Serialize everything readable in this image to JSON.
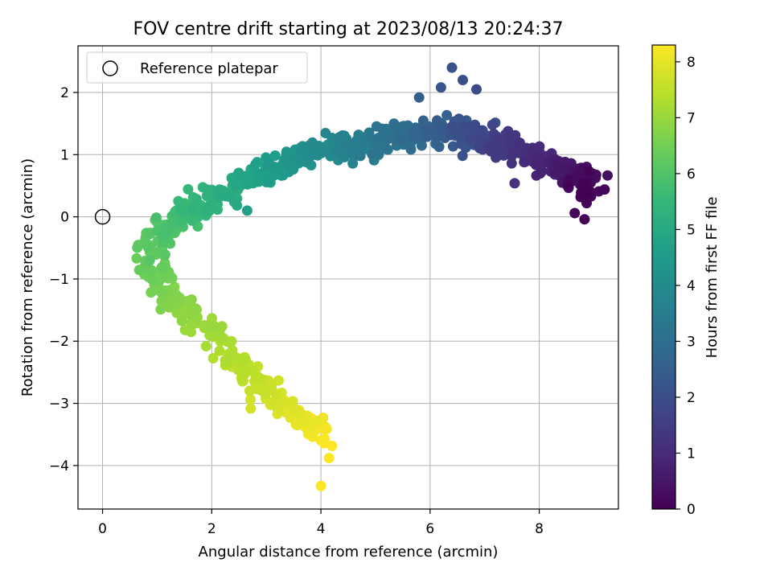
{
  "chart_data": {
    "type": "scatter",
    "title": "FOV centre drift starting at 2023/08/13 20:24:37",
    "xlabel": "Angular distance from reference (arcmin)",
    "ylabel": "Rotation from reference (arcmin)",
    "xlim": [
      -0.45,
      9.45
    ],
    "ylim": [
      -4.7,
      2.75
    ],
    "xticks": [
      0,
      2,
      4,
      6,
      8
    ],
    "xtick_labels": [
      "0",
      "2",
      "4",
      "6",
      "8"
    ],
    "yticks": [
      -4,
      -3,
      -2,
      -1,
      0,
      1,
      2
    ],
    "ytick_labels": [
      "−4",
      "−3",
      "−2",
      "−1",
      "0",
      "1",
      "2"
    ],
    "grid": true,
    "legend": {
      "placement": "top-left",
      "entries": [
        {
          "label": "Reference platepar",
          "marker": "open-circle"
        }
      ]
    },
    "reference_point": {
      "x": 0,
      "y": 0
    },
    "colorbar": {
      "label": "Hours from first FF file",
      "colormap": "viridis",
      "range": [
        0,
        8.3
      ],
      "ticks": [
        0,
        1,
        2,
        3,
        4,
        5,
        6,
        7,
        8
      ],
      "tick_labels": [
        "0",
        "1",
        "2",
        "3",
        "4",
        "5",
        "6",
        "7",
        "8"
      ],
      "colors": [
        "#440154",
        "#482878",
        "#3e4989",
        "#31688e",
        "#26828e",
        "#1f9e89",
        "#35b779",
        "#6ece58",
        "#b5de2b",
        "#fde725"
      ]
    },
    "track": [
      {
        "t": 0.0,
        "x": 8.85,
        "y": 0.35
      },
      {
        "t": 0.3,
        "x": 8.8,
        "y": 0.62
      },
      {
        "t": 0.6,
        "x": 8.45,
        "y": 0.75
      },
      {
        "t": 0.9,
        "x": 8.1,
        "y": 0.88
      },
      {
        "t": 1.2,
        "x": 7.7,
        "y": 1.05
      },
      {
        "t": 1.6,
        "x": 7.2,
        "y": 1.2
      },
      {
        "t": 2.0,
        "x": 6.8,
        "y": 1.3
      },
      {
        "t": 2.4,
        "x": 6.3,
        "y": 1.4
      },
      {
        "t": 2.8,
        "x": 5.8,
        "y": 1.35
      },
      {
        "t": 3.2,
        "x": 5.2,
        "y": 1.25
      },
      {
        "t": 3.6,
        "x": 4.6,
        "y": 1.12
      },
      {
        "t": 4.0,
        "x": 4.0,
        "y": 1.1
      },
      {
        "t": 4.4,
        "x": 3.4,
        "y": 0.9
      },
      {
        "t": 4.8,
        "x": 2.8,
        "y": 0.65
      },
      {
        "t": 5.2,
        "x": 2.2,
        "y": 0.35
      },
      {
        "t": 5.6,
        "x": 1.6,
        "y": 0.1
      },
      {
        "t": 6.0,
        "x": 1.05,
        "y": -0.2
      },
      {
        "t": 6.3,
        "x": 0.85,
        "y": -0.65
      },
      {
        "t": 6.6,
        "x": 1.1,
        "y": -1.1
      },
      {
        "t": 6.9,
        "x": 1.55,
        "y": -1.5
      },
      {
        "t": 7.2,
        "x": 2.1,
        "y": -2.0
      },
      {
        "t": 7.5,
        "x": 2.65,
        "y": -2.5
      },
      {
        "t": 7.8,
        "x": 3.2,
        "y": -2.95
      },
      {
        "t": 8.1,
        "x": 3.75,
        "y": -3.3
      },
      {
        "t": 8.3,
        "x": 4.05,
        "y": -3.6
      }
    ],
    "outliers": [
      {
        "t": 2.1,
        "x": 6.4,
        "y": 2.4
      },
      {
        "t": 2.0,
        "x": 6.6,
        "y": 2.2
      },
      {
        "t": 2.2,
        "x": 6.2,
        "y": 2.08
      },
      {
        "t": 1.9,
        "x": 6.85,
        "y": 2.05
      },
      {
        "t": 2.5,
        "x": 5.8,
        "y": 1.92
      },
      {
        "t": 1.2,
        "x": 7.55,
        "y": 0.54
      },
      {
        "t": 0.1,
        "x": 8.65,
        "y": 0.06
      },
      {
        "t": 0.0,
        "x": 8.83,
        "y": -0.04
      },
      {
        "t": 4.7,
        "x": 2.65,
        "y": 0.1
      },
      {
        "t": 8.3,
        "x": 4.15,
        "y": -3.88
      },
      {
        "t": 8.3,
        "x": 4.0,
        "y": -4.33
      }
    ]
  }
}
